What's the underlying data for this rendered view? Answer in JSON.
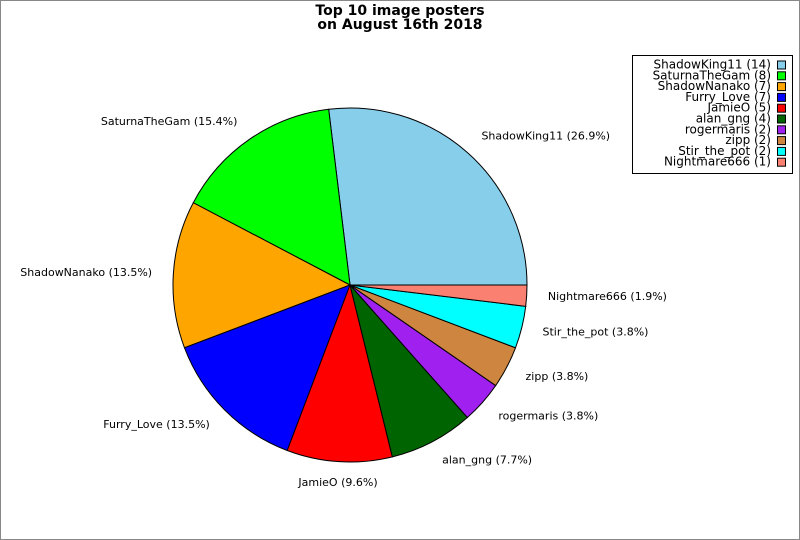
{
  "chart_data": {
    "type": "pie",
    "title": [
      "Top 10 image posters",
      "on August 16th 2018"
    ],
    "categories": [
      "ShadowKing11",
      "SaturnaTheGam",
      "ShadowNanako",
      "Furry_Love",
      "JamieO",
      "alan_gng",
      "rogermaris",
      "zipp",
      "Stir_the_pot",
      "Nightmare666"
    ],
    "values": [
      14,
      8,
      7,
      7,
      5,
      4,
      2,
      2,
      2,
      1
    ],
    "legend_labels": [
      "ShadowKing11 (14)",
      "SaturnaTheGam (8)",
      "ShadowNanako (7)",
      "Furry_Love (7)",
      "JamieO (5)",
      "alan_gng (4)",
      "rogermaris (2)",
      "zipp (2)",
      "Stir_the_pot (2)",
      "Nightmare666 (1)"
    ],
    "slice_labels": [
      "ShadowKing11 (26.9%)",
      "SaturnaTheGam (15.4%)",
      "ShadowNanako (13.5%)",
      "Furry_Love (13.5%)",
      "JamieO (9.6%)",
      "alan_gng (7.7%)",
      "rogermaris (3.8%)",
      "zipp (3.8%)",
      "Stir_the_pot (3.8%)",
      "Nightmare666 (1.9%)"
    ],
    "colors": [
      "#87ceeb",
      "#00ff00",
      "#ffa500",
      "#0000ff",
      "#ff0000",
      "#006400",
      "#a020f0",
      "#cd853f",
      "#00ffff",
      "#fa8072"
    ],
    "legend_position": "upper right"
  }
}
